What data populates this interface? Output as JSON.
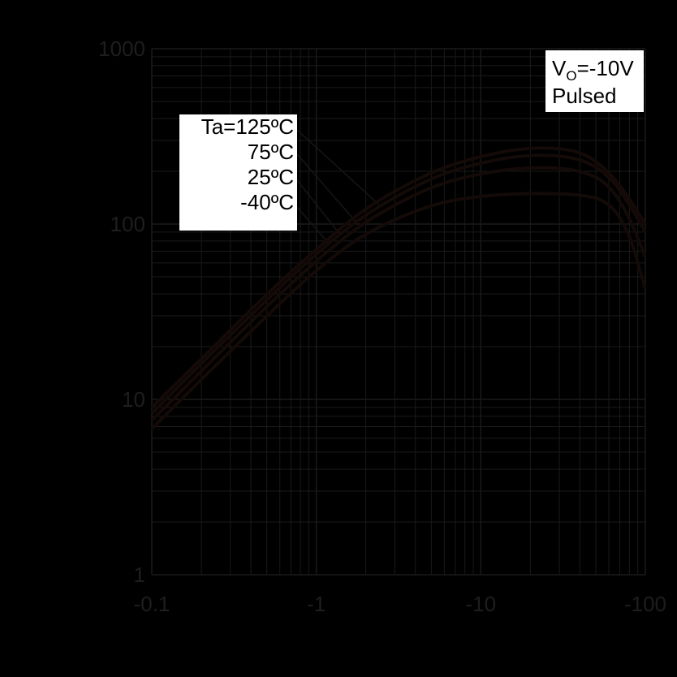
{
  "chart_data": {
    "type": "line",
    "x_scale": "log",
    "y_scale": "log",
    "xlim": [
      -0.1,
      -100
    ],
    "ylim": [
      1,
      1000
    ],
    "x_ticks": [
      "-0.1",
      "-1",
      "-10",
      "-100"
    ],
    "y_ticks": [
      "1",
      "10",
      "100",
      "1000"
    ],
    "grid": true,
    "x_abs": [
      0.1,
      0.2,
      0.5,
      1,
      2,
      5,
      10,
      20,
      40,
      60,
      80,
      100
    ],
    "series": [
      {
        "name": "Ta=125ºC",
        "values": [
          9,
          17,
          40,
          72,
          125,
          200,
          245,
          275,
          265,
          200,
          140,
          100
        ]
      },
      {
        "name": "75ºC",
        "values": [
          8.3,
          16,
          37,
          68,
          115,
          185,
          225,
          250,
          240,
          190,
          130,
          90
        ]
      },
      {
        "name": "25ºC",
        "values": [
          7.6,
          14.5,
          34,
          62,
          105,
          165,
          195,
          212,
          205,
          170,
          110,
          65
        ]
      },
      {
        "name": "-40ºC",
        "values": [
          6.8,
          13,
          30,
          55,
          90,
          130,
          145,
          150,
          148,
          135,
          90,
          42
        ]
      }
    ],
    "annotation": {
      "line1_main": "V",
      "line1_sub": "O",
      "line1_rest": "=-10V",
      "line2": "Pulsed"
    },
    "legend_placement": "top-left",
    "colors": {
      "background": "#000000",
      "curve": "#140a08",
      "grid": "#1a1a1a",
      "legend_bg": "#ffffff"
    }
  }
}
